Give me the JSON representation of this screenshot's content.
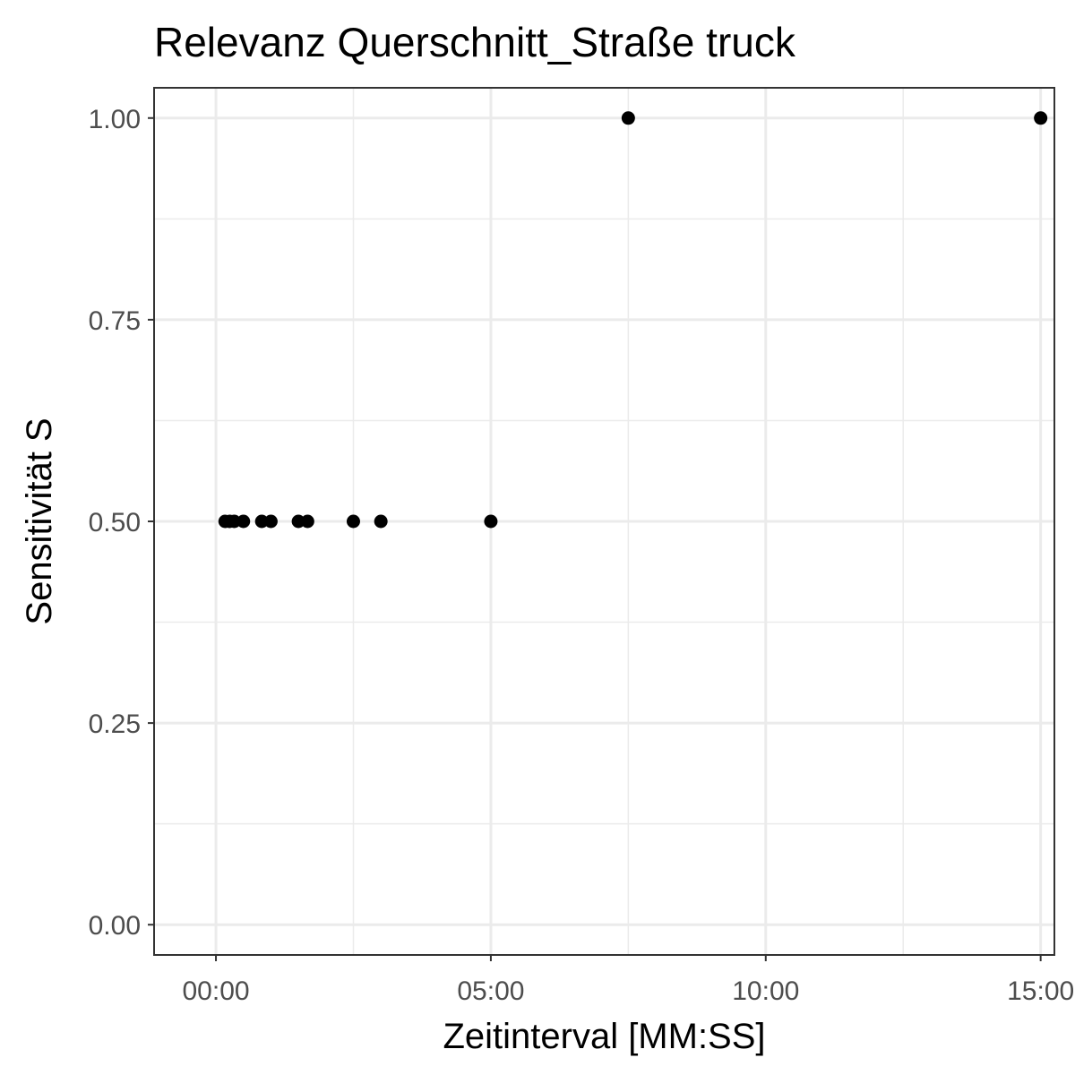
{
  "chart_data": {
    "type": "scatter",
    "title": "Relevanz Querschnitt_Straße truck",
    "xlabel": "Zeitinterval [MM:SS]",
    "ylabel": "Sensitivität S",
    "x_unit": "seconds",
    "xlim": [
      -67.5,
      915
    ],
    "ylim": [
      -0.0375,
      1.0375
    ],
    "x_ticks": [
      {
        "value": 0,
        "label": "00:00"
      },
      {
        "value": 300,
        "label": "05:00"
      },
      {
        "value": 600,
        "label": "10:00"
      },
      {
        "value": 900,
        "label": "15:00"
      }
    ],
    "x_minor_ticks": [
      150,
      450,
      750
    ],
    "y_ticks": [
      {
        "value": 0,
        "label": "0.00"
      },
      {
        "value": 0.25,
        "label": "0.25"
      },
      {
        "value": 0.5,
        "label": "0.50"
      },
      {
        "value": 0.75,
        "label": "0.75"
      },
      {
        "value": 1,
        "label": "1.00"
      }
    ],
    "y_minor_ticks": [
      0.125,
      0.375,
      0.625,
      0.875
    ],
    "grid": true,
    "points": [
      {
        "x": 10,
        "y": 0.5
      },
      {
        "x": 15,
        "y": 0.5
      },
      {
        "x": 20,
        "y": 0.5
      },
      {
        "x": 30,
        "y": 0.5
      },
      {
        "x": 50,
        "y": 0.5
      },
      {
        "x": 60,
        "y": 0.5
      },
      {
        "x": 90,
        "y": 0.5
      },
      {
        "x": 100,
        "y": 0.5
      },
      {
        "x": 150,
        "y": 0.5
      },
      {
        "x": 180,
        "y": 0.5
      },
      {
        "x": 300,
        "y": 0.5
      },
      {
        "x": 450,
        "y": 1.0
      },
      {
        "x": 900,
        "y": 1.0
      }
    ],
    "point_color": "#000000"
  }
}
